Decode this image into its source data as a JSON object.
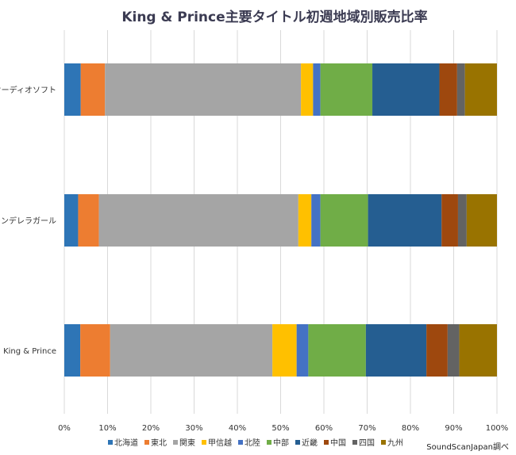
{
  "chart_data": {
    "type": "bar",
    "orientation": "horizontal",
    "stacked": "percent",
    "title": "King & Prince主要タイトル初週地域別販売比率",
    "xlabel": "",
    "ylabel": "",
    "xlim": [
      0,
      100
    ],
    "x_ticks": [
      "0%",
      "10%",
      "20%",
      "30%",
      "40%",
      "50%",
      "60%",
      "70%",
      "80%",
      "90%",
      "100%"
    ],
    "grid": "vertical",
    "legend_position": "bottom",
    "categories": [
      "全オーディオソフト",
      "シンデレラガール",
      "King & Prince"
    ],
    "series": [
      {
        "name": "北海道",
        "color": "#2E75B6",
        "values": [
          3.8,
          3.2,
          3.7
        ]
      },
      {
        "name": "東北",
        "color": "#ED7D31",
        "values": [
          5.6,
          4.8,
          6.9
        ]
      },
      {
        "name": "関東",
        "color": "#A5A5A5",
        "values": [
          45.3,
          46.1,
          37.5
        ]
      },
      {
        "name": "甲信越",
        "color": "#FFC000",
        "values": [
          2.8,
          3.0,
          5.6
        ]
      },
      {
        "name": "北陸",
        "color": "#4472C4",
        "values": [
          1.7,
          2.1,
          2.7
        ]
      },
      {
        "name": "中部",
        "color": "#70AD47",
        "values": [
          12.0,
          11.0,
          13.3
        ]
      },
      {
        "name": "近畿",
        "color": "#255E91",
        "values": [
          15.5,
          17.0,
          14.0
        ]
      },
      {
        "name": "中国",
        "color": "#9E480E",
        "values": [
          4.1,
          3.8,
          4.9
        ]
      },
      {
        "name": "四国",
        "color": "#636363",
        "values": [
          1.8,
          2.0,
          2.7
        ]
      },
      {
        "name": "九州",
        "color": "#997300",
        "values": [
          7.4,
          7.0,
          8.7
        ]
      }
    ]
  },
  "source_note": "SoundScanJapan調べ"
}
